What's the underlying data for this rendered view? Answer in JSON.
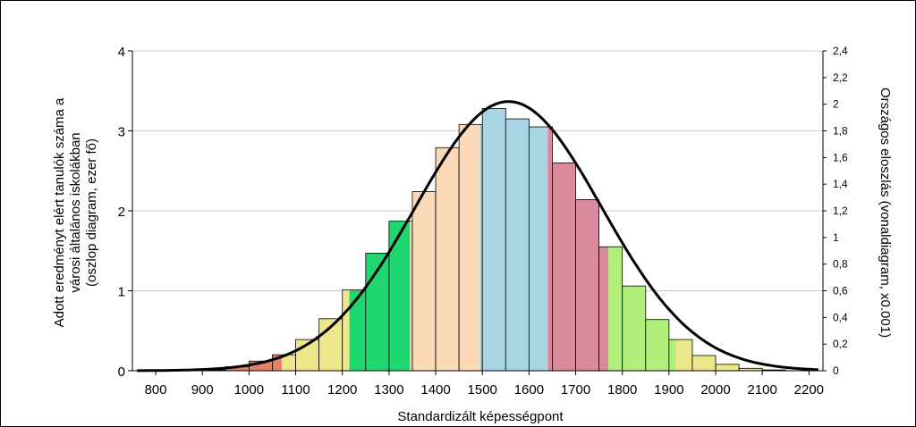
{
  "chart_data": {
    "type": "bar",
    "xlabel": "Standardizált képességpont",
    "ylabel_lines": [
      "Adott eredményt elért tanulók száma a",
      "városi általános iskolákban",
      "(oszlop diagram, ezer fő)"
    ],
    "y2label": "Országos eloszlás (vonaldiagram, x0.001)",
    "xlim": [
      750,
      2230
    ],
    "ylim": [
      0,
      4
    ],
    "y2lim": [
      0,
      2.4
    ],
    "xticks": [
      "800",
      "900",
      "1000",
      "1100",
      "1200",
      "1300",
      "1400",
      "1500",
      "1600",
      "1700",
      "1800",
      "1900",
      "2000",
      "2100",
      "2200"
    ],
    "yticks": [
      "0",
      "1",
      "2",
      "3",
      "4"
    ],
    "y2ticks": [
      "0",
      "0,2",
      "0,4",
      "0,6",
      "0,8",
      "1",
      "1,2",
      "1,4",
      "1,6",
      "1,8",
      "2",
      "2,2",
      "2,4"
    ],
    "grid": "horizontal",
    "bar_width": 50,
    "bars": [
      {
        "x": 775,
        "value": 0.0,
        "color": "#e58068"
      },
      {
        "x": 825,
        "value": 0.0,
        "color": "#e58068"
      },
      {
        "x": 875,
        "value": 0.0,
        "color": "#e58068"
      },
      {
        "x": 925,
        "value": 0.01,
        "color": "#e58068"
      },
      {
        "x": 975,
        "value": 0.05,
        "color": "#e58068"
      },
      {
        "x": 1025,
        "value": 0.12,
        "color": "#e58068"
      },
      {
        "x": 1075,
        "value": 0.2,
        "color": "#e58068",
        "split": {
          "at": 1070,
          "color": "#ede68a"
        }
      },
      {
        "x": 1125,
        "value": 0.39,
        "color": "#ede68a"
      },
      {
        "x": 1175,
        "value": 0.65,
        "color": "#ede68a"
      },
      {
        "x": 1225,
        "value": 1.01,
        "color": "#ede68a",
        "split": {
          "at": 1215,
          "color": "#1ed76e"
        }
      },
      {
        "x": 1275,
        "value": 1.47,
        "color": "#1ed76e"
      },
      {
        "x": 1325,
        "value": 1.87,
        "color": "#1ed76e",
        "split": {
          "at": 1345,
          "color": "#fbd8b6"
        }
      },
      {
        "x": 1375,
        "value": 2.24,
        "color": "#fbd8b6"
      },
      {
        "x": 1425,
        "value": 2.79,
        "color": "#fbd8b6"
      },
      {
        "x": 1475,
        "value": 3.08,
        "color": "#fbd8b6",
        "split": {
          "at": 1495,
          "color": "#a9d4e4"
        }
      },
      {
        "x": 1525,
        "value": 3.28,
        "color": "#a9d4e4"
      },
      {
        "x": 1575,
        "value": 3.15,
        "color": "#a9d4e4"
      },
      {
        "x": 1625,
        "value": 3.05,
        "color": "#a9d4e4",
        "split": {
          "at": 1640,
          "color": "#d98a9c"
        }
      },
      {
        "x": 1675,
        "value": 2.6,
        "color": "#d98a9c"
      },
      {
        "x": 1725,
        "value": 2.14,
        "color": "#d98a9c"
      },
      {
        "x": 1775,
        "value": 1.55,
        "color": "#d98a9c",
        "split": {
          "at": 1770,
          "color": "#b2ee7c"
        }
      },
      {
        "x": 1825,
        "value": 1.06,
        "color": "#b2ee7c"
      },
      {
        "x": 1875,
        "value": 0.64,
        "color": "#b2ee7c"
      },
      {
        "x": 1925,
        "value": 0.39,
        "color": "#b2ee7c",
        "split": {
          "at": 1915,
          "color": "#ede68a"
        }
      },
      {
        "x": 1975,
        "value": 0.19,
        "color": "#ede68a"
      },
      {
        "x": 2025,
        "value": 0.08,
        "color": "#ede68a"
      },
      {
        "x": 2075,
        "value": 0.03,
        "color": "#ede68a"
      },
      {
        "x": 2125,
        "value": 0.01,
        "color": "#ede68a"
      },
      {
        "x": 2175,
        "value": 0.0,
        "color": "#ede68a"
      }
    ],
    "line": {
      "axis": "right",
      "mean": 1556,
      "sd": 200,
      "peak": 2.02,
      "color": "#000000"
    }
  }
}
